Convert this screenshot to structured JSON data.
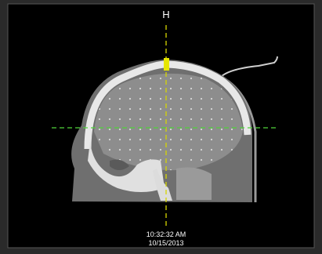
{
  "viewport": {
    "orientation_label": "H",
    "time": "10:32:32 AM",
    "date": "10/15/2013"
  }
}
